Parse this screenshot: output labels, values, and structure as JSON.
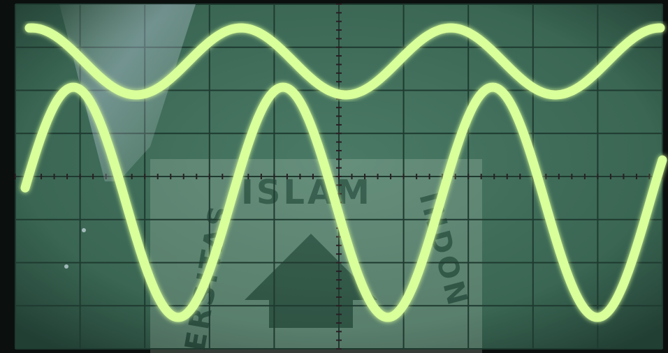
{
  "scene": {
    "subject": "oscilloscope-screen-photo",
    "background_color": "#3d6a58",
    "grid_color": "#1f3a30",
    "trace_color": "#d8ff9a",
    "trace_glow_color": "#b6f07a",
    "bezel_color": "#0b100e"
  },
  "graticule": {
    "major_divisions_x": 10,
    "major_divisions_y": 8
  },
  "traces": [
    {
      "name_id": "upper-trace",
      "shape": "distorted-sine",
      "cycles_visible": 3
    },
    {
      "name_id": "lower-trace",
      "shape": "sine",
      "cycles_visible": 3
    }
  ],
  "watermark": {
    "text_top": "ISLAM",
    "text_left": "ERSITAS",
    "text_right": "INDON"
  }
}
